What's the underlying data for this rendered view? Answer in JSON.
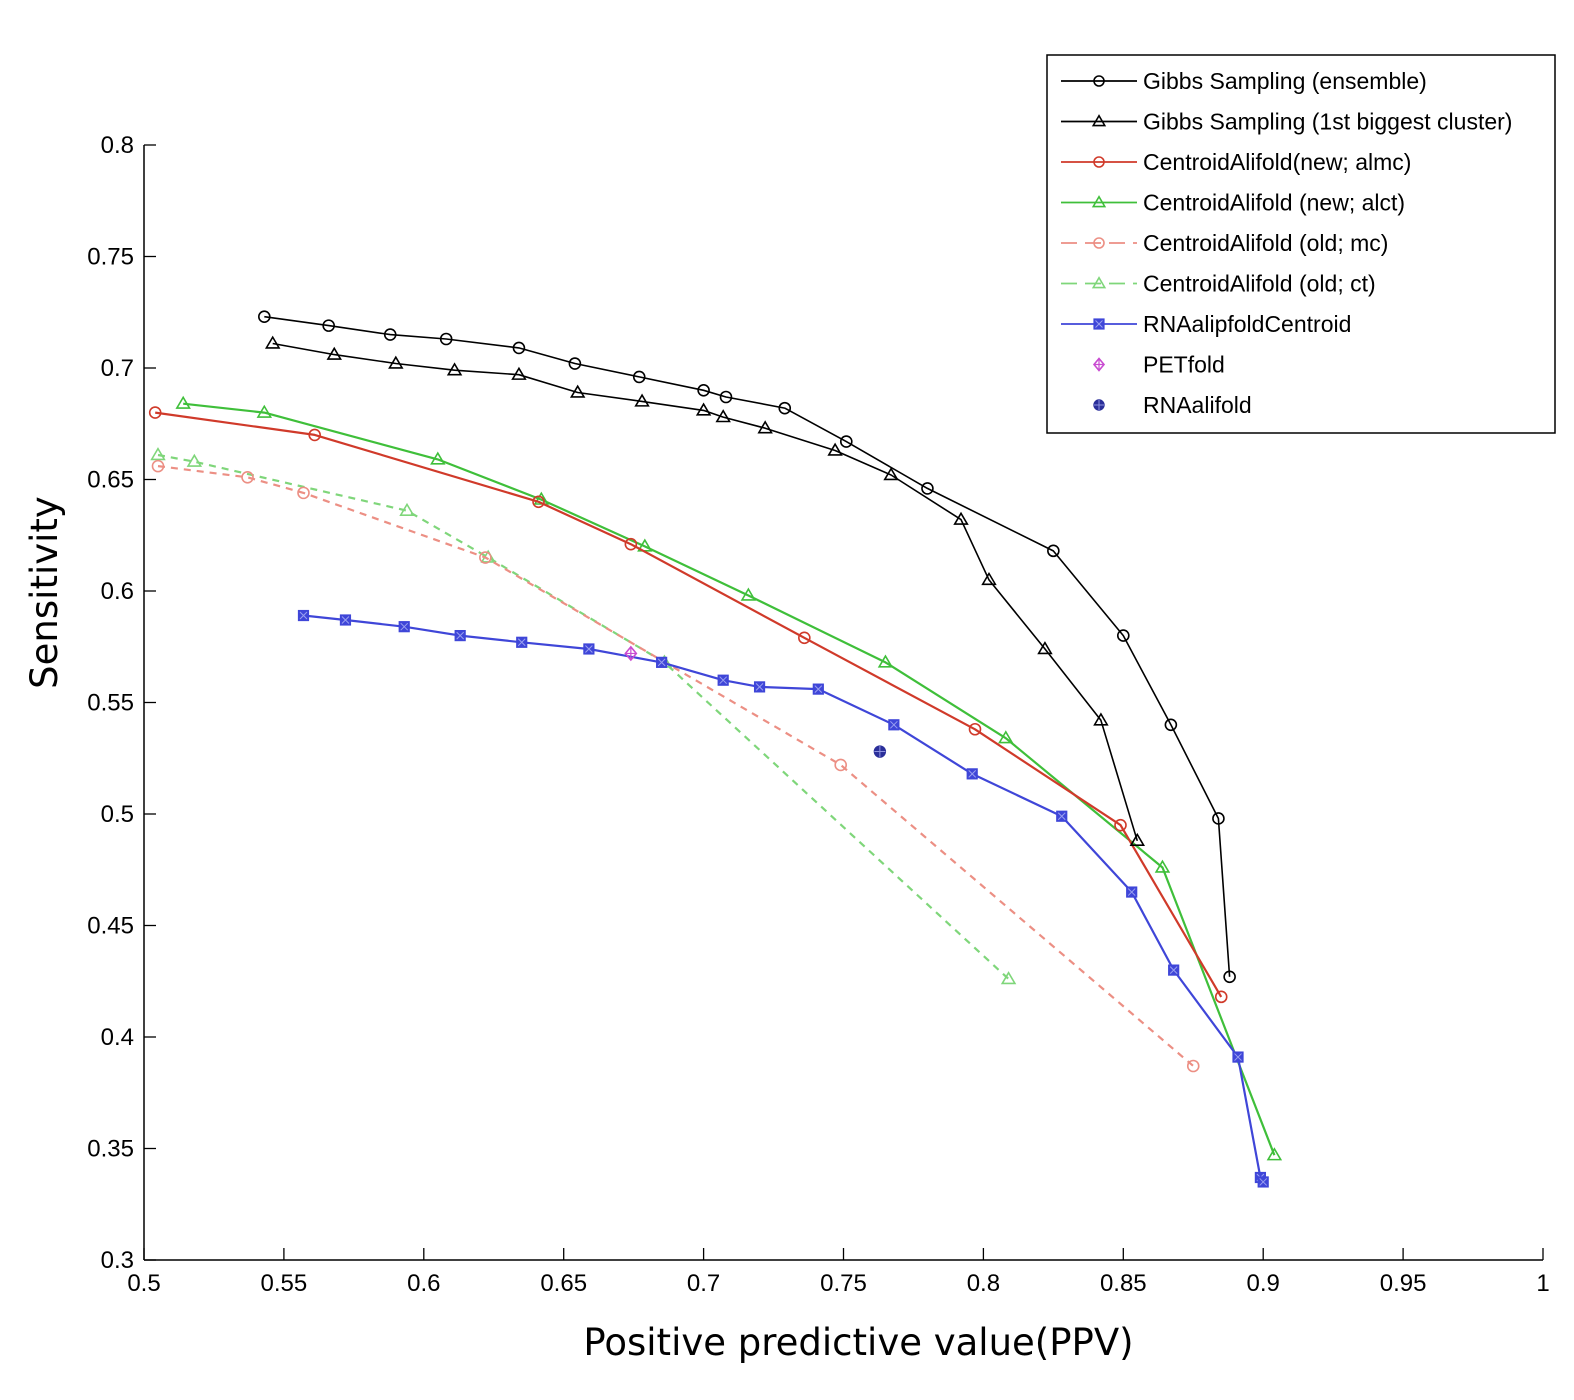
{
  "chart_data": {
    "type": "line",
    "title": "",
    "xlabel": "Positive predictive value(PPV)",
    "ylabel": "Sensitivity",
    "xlim": [
      0.5,
      1
    ],
    "ylim": [
      0.3,
      0.8
    ],
    "xticks": [
      "0.5",
      "0.55",
      "0.6",
      "0.65",
      "0.7",
      "0.75",
      "0.8",
      "0.85",
      "0.9",
      "0.95",
      "1"
    ],
    "yticks": [
      "0.3",
      "0.35",
      "0.4",
      "0.45",
      "0.5",
      "0.55",
      "0.6",
      "0.65",
      "0.7",
      "0.75",
      "0.8"
    ],
    "grid": false,
    "legend_position": "top-right",
    "series": [
      {
        "name": "Gibbs Sampling (ensemble)",
        "color": "#000000",
        "dash": "solid",
        "marker": "circle",
        "points": [
          [
            0.543,
            0.723
          ],
          [
            0.566,
            0.719
          ],
          [
            0.588,
            0.715
          ],
          [
            0.608,
            0.713
          ],
          [
            0.634,
            0.709
          ],
          [
            0.654,
            0.702
          ],
          [
            0.677,
            0.696
          ],
          [
            0.7,
            0.69
          ],
          [
            0.708,
            0.687
          ],
          [
            0.729,
            0.682
          ],
          [
            0.751,
            0.667
          ],
          [
            0.78,
            0.646
          ],
          [
            0.825,
            0.618
          ],
          [
            0.85,
            0.58
          ],
          [
            0.867,
            0.54
          ],
          [
            0.884,
            0.498
          ],
          [
            0.888,
            0.427
          ]
        ]
      },
      {
        "name": "Gibbs Sampling (1st biggest cluster)",
        "color": "#000000",
        "dash": "solid",
        "marker": "triangle",
        "points": [
          [
            0.546,
            0.711
          ],
          [
            0.568,
            0.706
          ],
          [
            0.59,
            0.702
          ],
          [
            0.611,
            0.699
          ],
          [
            0.634,
            0.697
          ],
          [
            0.655,
            0.689
          ],
          [
            0.678,
            0.685
          ],
          [
            0.7,
            0.681
          ],
          [
            0.707,
            0.678
          ],
          [
            0.722,
            0.673
          ],
          [
            0.747,
            0.663
          ],
          [
            0.767,
            0.652
          ],
          [
            0.792,
            0.632
          ],
          [
            0.802,
            0.605
          ],
          [
            0.822,
            0.574
          ],
          [
            0.842,
            0.542
          ],
          [
            0.855,
            0.488
          ]
        ]
      },
      {
        "name": "CentroidAlifold(new; almc)",
        "color": "#d03a2a",
        "dash": "solid",
        "marker": "circle",
        "points": [
          [
            0.504,
            0.68
          ],
          [
            0.561,
            0.67
          ],
          [
            0.641,
            0.64
          ],
          [
            0.674,
            0.621
          ],
          [
            0.736,
            0.579
          ],
          [
            0.797,
            0.538
          ],
          [
            0.849,
            0.495
          ],
          [
            0.885,
            0.418
          ]
        ]
      },
      {
        "name": "CentroidAlifold (new; alct)",
        "color": "#3fbf3a",
        "dash": "solid",
        "marker": "triangle",
        "points": [
          [
            0.514,
            0.684
          ],
          [
            0.543,
            0.68
          ],
          [
            0.605,
            0.659
          ],
          [
            0.642,
            0.641
          ],
          [
            0.679,
            0.62
          ],
          [
            0.716,
            0.598
          ],
          [
            0.765,
            0.568
          ],
          [
            0.808,
            0.534
          ],
          [
            0.864,
            0.476
          ],
          [
            0.904,
            0.347
          ]
        ]
      },
      {
        "name": "CentroidAlifold (old; mc)",
        "color": "#ec8f84",
        "dash": "dashed",
        "marker": "circle",
        "points": [
          [
            0.505,
            0.656
          ],
          [
            0.537,
            0.651
          ],
          [
            0.557,
            0.644
          ],
          [
            0.622,
            0.615
          ],
          [
            0.749,
            0.522
          ],
          [
            0.875,
            0.387
          ]
        ]
      },
      {
        "name": "CentroidAlifold (old; ct)",
        "color": "#7fd67a",
        "dash": "dashed",
        "marker": "triangle",
        "points": [
          [
            0.505,
            0.661
          ],
          [
            0.518,
            0.658
          ],
          [
            0.594,
            0.636
          ],
          [
            0.623,
            0.615
          ],
          [
            0.686,
            0.568
          ],
          [
            0.809,
            0.426
          ]
        ]
      },
      {
        "name": "RNAalipfoldCentroid",
        "color": "#3f46d8",
        "dash": "solid",
        "marker": "square",
        "points": [
          [
            0.557,
            0.589
          ],
          [
            0.572,
            0.587
          ],
          [
            0.593,
            0.584
          ],
          [
            0.613,
            0.58
          ],
          [
            0.635,
            0.577
          ],
          [
            0.659,
            0.574
          ],
          [
            0.685,
            0.568
          ],
          [
            0.707,
            0.56
          ],
          [
            0.72,
            0.557
          ],
          [
            0.741,
            0.556
          ],
          [
            0.768,
            0.54
          ],
          [
            0.796,
            0.518
          ],
          [
            0.828,
            0.499
          ],
          [
            0.853,
            0.465
          ],
          [
            0.868,
            0.43
          ],
          [
            0.891,
            0.391
          ],
          [
            0.899,
            0.337
          ],
          [
            0.9,
            0.335
          ]
        ]
      },
      {
        "name": "PETfold",
        "color": "#c94bd1",
        "dash": "none",
        "marker": "diamond",
        "points": [
          [
            0.674,
            0.572
          ]
        ]
      },
      {
        "name": "RNAalifold",
        "color": "#2b2f9a",
        "dash": "none",
        "marker": "circleplus",
        "points": [
          [
            0.763,
            0.528
          ]
        ]
      }
    ]
  }
}
